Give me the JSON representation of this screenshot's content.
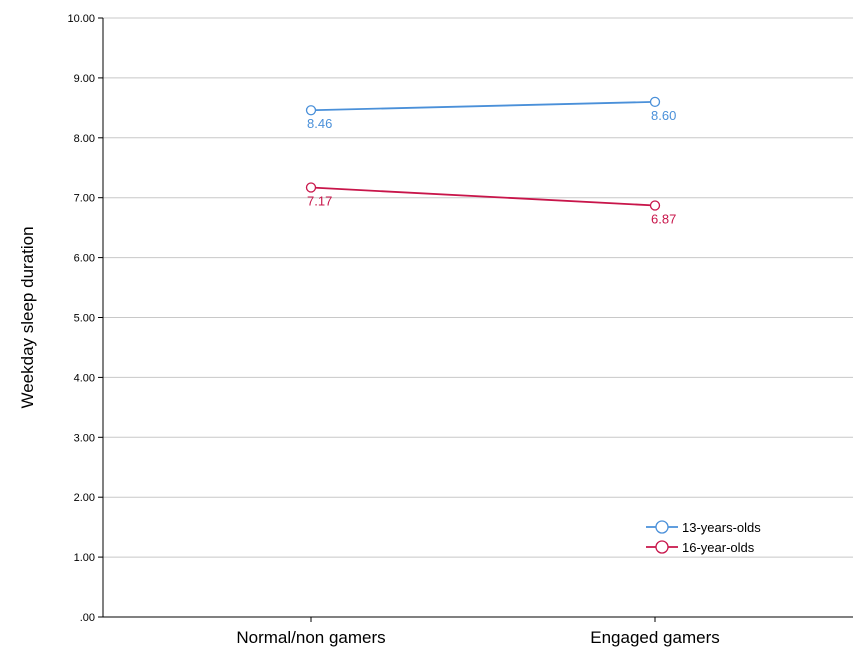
{
  "chart_data": {
    "type": "line",
    "title": "",
    "xlabel": "",
    "ylabel": "Weekday sleep duration",
    "categories": [
      "Normal/non gamers",
      "Engaged gamers"
    ],
    "ylim": [
      0,
      10
    ],
    "yticks": [
      ".00",
      "1.00",
      "2.00",
      "3.00",
      "4.00",
      "5.00",
      "6.00",
      "7.00",
      "8.00",
      "9.00",
      "10.00"
    ],
    "grid": true,
    "legend_position": "bottom-right",
    "series": [
      {
        "name": "13-years-olds",
        "values": [
          8.46,
          8.6
        ],
        "labels": [
          "8.46",
          "8.60"
        ],
        "color": "#4a90d9"
      },
      {
        "name": "16-year-olds",
        "values": [
          7.17,
          6.87
        ],
        "labels": [
          "7.17",
          "6.87"
        ],
        "color": "#c8154a"
      }
    ]
  }
}
